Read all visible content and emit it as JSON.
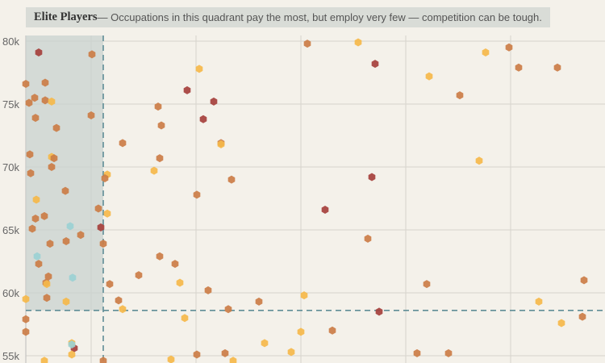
{
  "banner": {
    "title": "Elite Players",
    "description": " — Occupations in this quadrant pay the most, but employ very few — competition can be tough."
  },
  "colors": {
    "background": "#f4f1ea",
    "quadrant_fill": "#c9d2cf",
    "threshold_line": "#5f8d96",
    "grid": "#d6d4cc"
  },
  "chart_data": {
    "type": "scatter",
    "title": "",
    "xlabel": "",
    "ylabel": "",
    "xlim": [
      0,
      750
    ],
    "ylim": [
      54500,
      80600
    ],
    "yticks": [
      55000,
      60000,
      65000,
      70000,
      75000,
      80000
    ],
    "ytick_labels": [
      "55k",
      "60k",
      "65k",
      "70k",
      "75k",
      "80k"
    ],
    "xgrid": [
      113,
      243,
      373,
      503,
      633
    ],
    "grid": true,
    "highlight_quadrant": {
      "x_threshold": 128,
      "y_threshold": 58600
    },
    "categories": {
      "yellow": "#f5b84a",
      "orange": "#cb7d46",
      "dark": "#a5403c",
      "blue": "#9ad0d4"
    },
    "points": [
      {
        "x": 48,
        "y": 79100,
        "c": "dark"
      },
      {
        "x": 114,
        "y": 78950,
        "c": "orange"
      },
      {
        "x": 232,
        "y": 76100,
        "c": "dark"
      },
      {
        "x": 265,
        "y": 75200,
        "c": "dark"
      },
      {
        "x": 252,
        "y": 73800,
        "c": "dark"
      },
      {
        "x": 465,
        "y": 78200,
        "c": "dark"
      },
      {
        "x": 461,
        "y": 69200,
        "c": "dark"
      },
      {
        "x": 403,
        "y": 66600,
        "c": "dark"
      },
      {
        "x": 125,
        "y": 65200,
        "c": "dark"
      },
      {
        "x": 470,
        "y": 58500,
        "c": "dark"
      },
      {
        "x": 92,
        "y": 55600,
        "c": "dark"
      },
      {
        "x": 381,
        "y": 79800,
        "c": "orange"
      },
      {
        "x": 444,
        "y": 79900,
        "c": "yellow"
      },
      {
        "x": 532,
        "y": 77200,
        "c": "yellow"
      },
      {
        "x": 570,
        "y": 75700,
        "c": "orange"
      },
      {
        "x": 602,
        "y": 79100,
        "c": "yellow"
      },
      {
        "x": 631,
        "y": 79500,
        "c": "orange"
      },
      {
        "x": 643,
        "y": 77900,
        "c": "orange"
      },
      {
        "x": 691,
        "y": 77900,
        "c": "orange"
      },
      {
        "x": 594,
        "y": 70500,
        "c": "yellow"
      },
      {
        "x": 247,
        "y": 77800,
        "c": "yellow"
      },
      {
        "x": 196,
        "y": 74800,
        "c": "orange"
      },
      {
        "x": 200,
        "y": 73300,
        "c": "orange"
      },
      {
        "x": 152,
        "y": 71900,
        "c": "orange"
      },
      {
        "x": 274,
        "y": 71900,
        "c": "orange"
      },
      {
        "x": 274,
        "y": 71800,
        "c": "yellow"
      },
      {
        "x": 198,
        "y": 70700,
        "c": "orange"
      },
      {
        "x": 191,
        "y": 69700,
        "c": "yellow"
      },
      {
        "x": 287,
        "y": 69000,
        "c": "orange"
      },
      {
        "x": 244,
        "y": 67800,
        "c": "orange"
      },
      {
        "x": 133,
        "y": 69400,
        "c": "yellow"
      },
      {
        "x": 130,
        "y": 69100,
        "c": "orange"
      },
      {
        "x": 113,
        "y": 74100,
        "c": "orange"
      },
      {
        "x": 122,
        "y": 66700,
        "c": "orange"
      },
      {
        "x": 133,
        "y": 66300,
        "c": "yellow"
      },
      {
        "x": 128,
        "y": 63900,
        "c": "orange"
      },
      {
        "x": 198,
        "y": 62900,
        "c": "orange"
      },
      {
        "x": 217,
        "y": 62300,
        "c": "orange"
      },
      {
        "x": 172,
        "y": 61400,
        "c": "orange"
      },
      {
        "x": 136,
        "y": 60700,
        "c": "orange"
      },
      {
        "x": 223,
        "y": 60800,
        "c": "yellow"
      },
      {
        "x": 258,
        "y": 60200,
        "c": "orange"
      },
      {
        "x": 147,
        "y": 59400,
        "c": "orange"
      },
      {
        "x": 152,
        "y": 58700,
        "c": "yellow"
      },
      {
        "x": 283,
        "y": 58700,
        "c": "orange"
      },
      {
        "x": 321,
        "y": 59300,
        "c": "orange"
      },
      {
        "x": 377,
        "y": 59800,
        "c": "yellow"
      },
      {
        "x": 229,
        "y": 58000,
        "c": "yellow"
      },
      {
        "x": 456,
        "y": 64300,
        "c": "orange"
      },
      {
        "x": 529,
        "y": 60700,
        "c": "orange"
      },
      {
        "x": 668,
        "y": 59300,
        "c": "yellow"
      },
      {
        "x": 724,
        "y": 61000,
        "c": "orange"
      },
      {
        "x": 412,
        "y": 57000,
        "c": "orange"
      },
      {
        "x": 373,
        "y": 56900,
        "c": "yellow"
      },
      {
        "x": 696,
        "y": 57600,
        "c": "yellow"
      },
      {
        "x": 722,
        "y": 58100,
        "c": "orange"
      },
      {
        "x": 328,
        "y": 56000,
        "c": "yellow"
      },
      {
        "x": 361,
        "y": 55300,
        "c": "yellow"
      },
      {
        "x": 244,
        "y": 55100,
        "c": "orange"
      },
      {
        "x": 279,
        "y": 55200,
        "c": "orange"
      },
      {
        "x": 212,
        "y": 54700,
        "c": "yellow"
      },
      {
        "x": 289,
        "y": 54600,
        "c": "yellow"
      },
      {
        "x": 517,
        "y": 55200,
        "c": "orange"
      },
      {
        "x": 556,
        "y": 55200,
        "c": "orange"
      },
      {
        "x": 128,
        "y": 54600,
        "c": "orange"
      },
      {
        "x": 32,
        "y": 76600,
        "c": "orange"
      },
      {
        "x": 36,
        "y": 75100,
        "c": "orange"
      },
      {
        "x": 43,
        "y": 75500,
        "c": "orange"
      },
      {
        "x": 56,
        "y": 75300,
        "c": "orange"
      },
      {
        "x": 56,
        "y": 76700,
        "c": "orange"
      },
      {
        "x": 64,
        "y": 75200,
        "c": "yellow"
      },
      {
        "x": 44,
        "y": 73900,
        "c": "orange"
      },
      {
        "x": 70,
        "y": 73100,
        "c": "orange"
      },
      {
        "x": 37,
        "y": 71000,
        "c": "orange"
      },
      {
        "x": 64,
        "y": 70800,
        "c": "yellow"
      },
      {
        "x": 67,
        "y": 70700,
        "c": "orange"
      },
      {
        "x": 64,
        "y": 70000,
        "c": "orange"
      },
      {
        "x": 38,
        "y": 69500,
        "c": "orange"
      },
      {
        "x": 81,
        "y": 68100,
        "c": "orange"
      },
      {
        "x": 45,
        "y": 67400,
        "c": "yellow"
      },
      {
        "x": 55,
        "y": 66100,
        "c": "orange"
      },
      {
        "x": 44,
        "y": 65900,
        "c": "orange"
      },
      {
        "x": 40,
        "y": 65100,
        "c": "orange"
      },
      {
        "x": 87,
        "y": 65300,
        "c": "blue"
      },
      {
        "x": 100,
        "y": 64600,
        "c": "orange"
      },
      {
        "x": 82,
        "y": 64100,
        "c": "orange"
      },
      {
        "x": 62,
        "y": 63900,
        "c": "orange"
      },
      {
        "x": 46,
        "y": 62900,
        "c": "blue"
      },
      {
        "x": 48,
        "y": 62300,
        "c": "orange"
      },
      {
        "x": 60,
        "y": 61300,
        "c": "orange"
      },
      {
        "x": 57,
        "y": 60800,
        "c": "orange"
      },
      {
        "x": 58,
        "y": 60700,
        "c": "yellow"
      },
      {
        "x": 90,
        "y": 61200,
        "c": "blue"
      },
      {
        "x": 32,
        "y": 59500,
        "c": "yellow"
      },
      {
        "x": 58,
        "y": 59600,
        "c": "orange"
      },
      {
        "x": 82,
        "y": 59300,
        "c": "yellow"
      },
      {
        "x": 32,
        "y": 57900,
        "c": "orange"
      },
      {
        "x": 32,
        "y": 56900,
        "c": "orange"
      },
      {
        "x": 89,
        "y": 56000,
        "c": "yellow"
      },
      {
        "x": 89,
        "y": 55900,
        "c": "blue"
      },
      {
        "x": 89,
        "y": 55100,
        "c": "yellow"
      },
      {
        "x": 55,
        "y": 54600,
        "c": "yellow"
      }
    ]
  }
}
